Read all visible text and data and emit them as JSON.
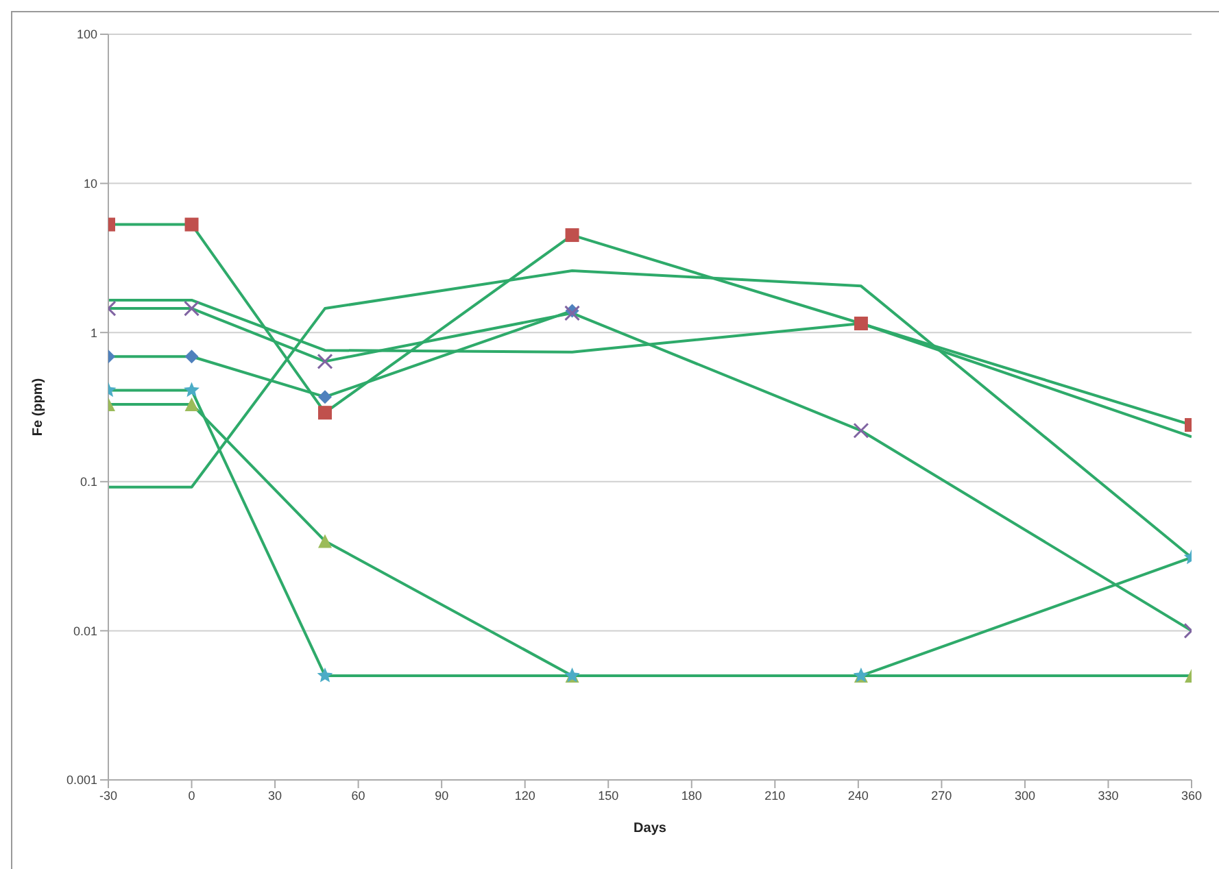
{
  "chart_data": {
    "type": "line",
    "xlabel": "Days",
    "ylabel": "Fe (ppm)",
    "log": "y",
    "grid": "y",
    "legend": false,
    "x": [
      -30,
      0,
      48,
      137,
      241,
      360
    ],
    "xlim": [
      -30,
      360
    ],
    "xticks": [
      -30,
      0,
      30,
      60,
      90,
      120,
      150,
      180,
      210,
      240,
      270,
      300,
      330,
      360
    ],
    "ylim": [
      0.001,
      100
    ],
    "yticks": [
      100,
      10,
      1,
      0.1,
      0.01,
      0.001
    ],
    "series": [
      {
        "color": "#2eaa6a",
        "marker": "diamond",
        "colors": [
          "#4f81bd",
          "#4f81bd",
          "#4f81bd",
          "#4f81bd",
          null,
          null
        ],
        "values": [
          0.69,
          0.69,
          0.37,
          1.4,
          null,
          null
        ]
      },
      {
        "color": "#2eaa6a",
        "marker": "square",
        "colors": [
          "#c0504d",
          "#c0504d",
          "#c0504d",
          "#c0504d",
          "#c0504d",
          "#c0504d"
        ],
        "values": [
          5.3,
          5.3,
          0.29,
          4.5,
          1.15,
          0.24
        ]
      },
      {
        "color": "#2eaa6a",
        "marker": "triangle",
        "colors": [
          "#9bbb59",
          "#9bbb59",
          "#9bbb59",
          "#9bbb59",
          "#9bbb59",
          "#9bbb59"
        ],
        "values": [
          0.33,
          0.33,
          0.04,
          0.005,
          0.005,
          0.005
        ]
      },
      {
        "color": "#2eaa6a",
        "marker": "cross",
        "colors": [
          "#8064a2",
          "#8064a2",
          "#8064a2",
          "#8064a2",
          "#8064a2",
          "#8064a2"
        ],
        "values": [
          1.45,
          1.45,
          0.64,
          1.35,
          0.22,
          0.01
        ]
      },
      {
        "color": "#2eaa6a",
        "marker": "star",
        "colors": [
          "#4bacc6",
          "#4bacc6",
          "#4bacc6",
          "#4bacc6",
          "#4bacc6",
          "#4bacc6"
        ],
        "values": [
          0.41,
          0.41,
          0.005,
          0.005,
          0.005,
          0.031
        ]
      },
      {
        "color": "#2eaa6a",
        "marker": "none",
        "values": [
          0.092,
          0.092,
          1.45,
          2.6,
          2.05,
          0.031
        ]
      },
      {
        "color": "#2eaa6a",
        "marker": "none",
        "values": [
          1.65,
          1.65,
          0.76,
          0.74,
          1.15,
          0.2
        ]
      }
    ]
  }
}
